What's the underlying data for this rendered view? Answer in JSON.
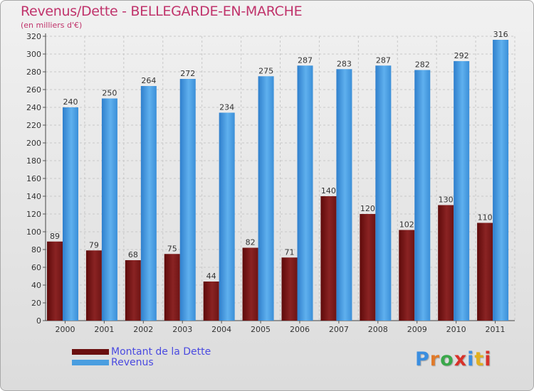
{
  "header": {
    "title": "Revenus/Dette - BELLEGARDE-EN-MARCHE",
    "subtitle": "(en milliers d'€)"
  },
  "legend": {
    "debt_label": "Montant de la Dette",
    "revenue_label": "Revenus"
  },
  "logo": {
    "text": "Proxiti",
    "letter_colors": [
      "#3a8ee0",
      "#e07a2a",
      "#3aa84a",
      "#d8322a",
      "#3a8ee0",
      "#e0b020",
      "#d8322a"
    ]
  },
  "colors": {
    "debt": "#7a1414",
    "debt_light": "#8c2a2a",
    "revenue": "#4a9ee0",
    "revenue_light": "#5eb0ee",
    "title": "#c0336b",
    "legend_text": "#4a4ae0"
  },
  "chart_data": {
    "type": "bar",
    "categories": [
      "2000",
      "2001",
      "2002",
      "2003",
      "2004",
      "2005",
      "2006",
      "2007",
      "2008",
      "2009",
      "2010",
      "2011"
    ],
    "series": [
      {
        "name": "Montant de la Dette",
        "values": [
          89,
          79,
          68,
          75,
          44,
          82,
          71,
          140,
          120,
          102,
          130,
          110
        ]
      },
      {
        "name": "Revenus",
        "values": [
          240,
          250,
          264,
          272,
          234,
          275,
          287,
          283,
          287,
          282,
          292,
          316
        ]
      }
    ],
    "title": "Revenus/Dette - BELLEGARDE-EN-MARCHE",
    "ylabel": "(en milliers d'€)",
    "xlabel": "",
    "ylim": [
      0,
      320
    ],
    "yticks": [
      0,
      20,
      40,
      60,
      80,
      100,
      120,
      140,
      160,
      180,
      200,
      220,
      240,
      260,
      280,
      300,
      320
    ],
    "grid": true,
    "legend_position": "bottom-left",
    "data_labels": true
  }
}
